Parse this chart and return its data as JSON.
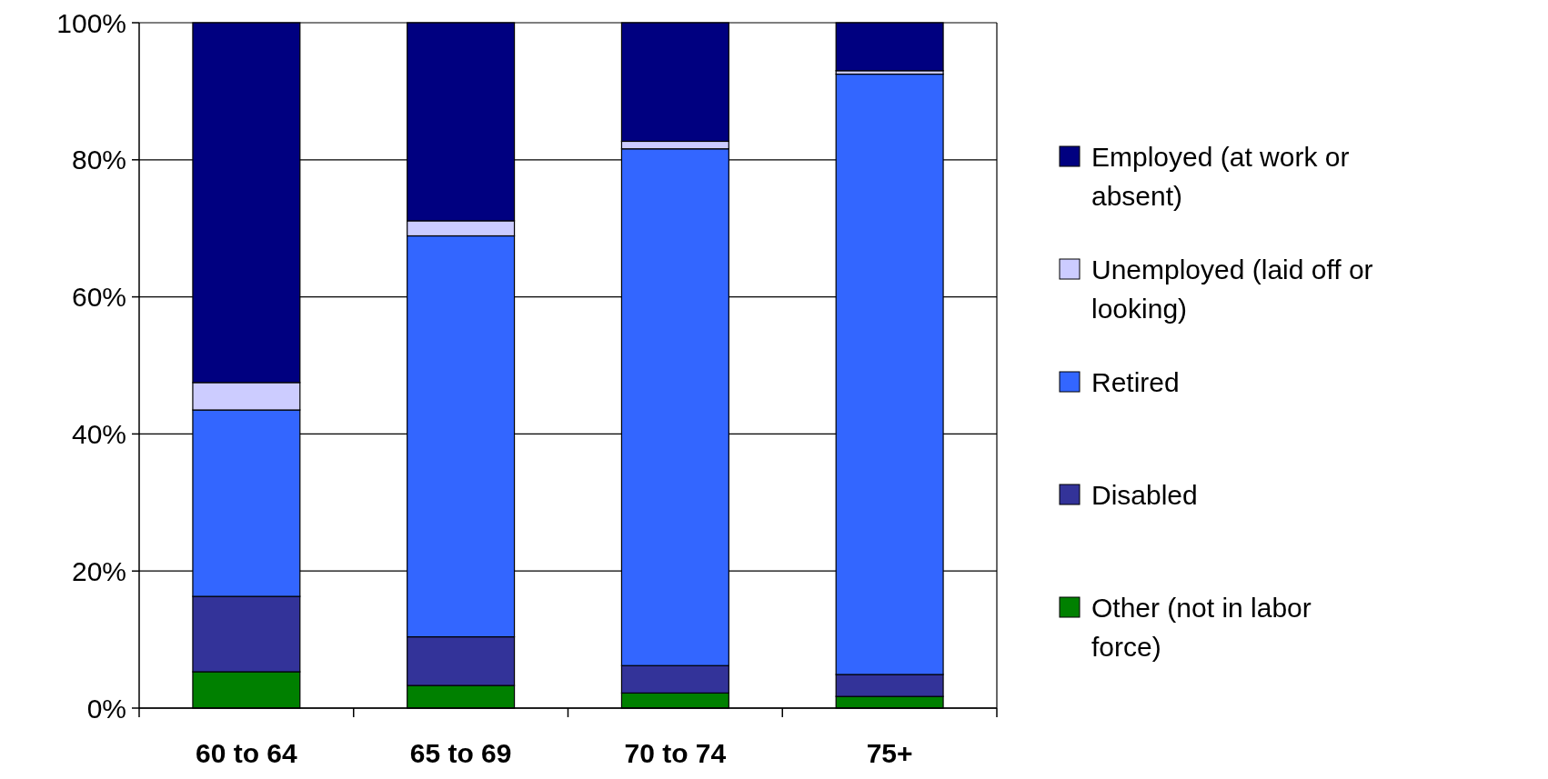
{
  "chart_data": {
    "type": "bar",
    "stacked": true,
    "categories": [
      "60 to 64",
      "65 to 69",
      "70 to 74",
      "75+"
    ],
    "series": [
      {
        "name": "Other (not in labor force)",
        "color": "#008000",
        "values": [
          5.3,
          3.3,
          2.2,
          1.7
        ]
      },
      {
        "name": "Disabled",
        "color": "#333399",
        "values": [
          11.0,
          7.1,
          4.0,
          3.2
        ]
      },
      {
        "name": "Retired",
        "color": "#3366ff",
        "values": [
          27.2,
          58.5,
          75.4,
          87.6
        ]
      },
      {
        "name": "Unemployed (laid off or looking)",
        "color": "#ccccff",
        "values": [
          4.0,
          2.2,
          1.1,
          0.5
        ]
      },
      {
        "name": "Employed (at work or absent)",
        "color": "#000080",
        "values": [
          52.5,
          28.9,
          17.3,
          7.0
        ]
      }
    ],
    "ylim": [
      0,
      100
    ],
    "yticks": [
      {
        "value": 0,
        "label": "0%"
      },
      {
        "value": 20,
        "label": "20%"
      },
      {
        "value": 40,
        "label": "40%"
      },
      {
        "value": 60,
        "label": "60%"
      },
      {
        "value": 80,
        "label": "80%"
      },
      {
        "value": 100,
        "label": "100%"
      }
    ],
    "grid": "y",
    "legend": "right"
  }
}
